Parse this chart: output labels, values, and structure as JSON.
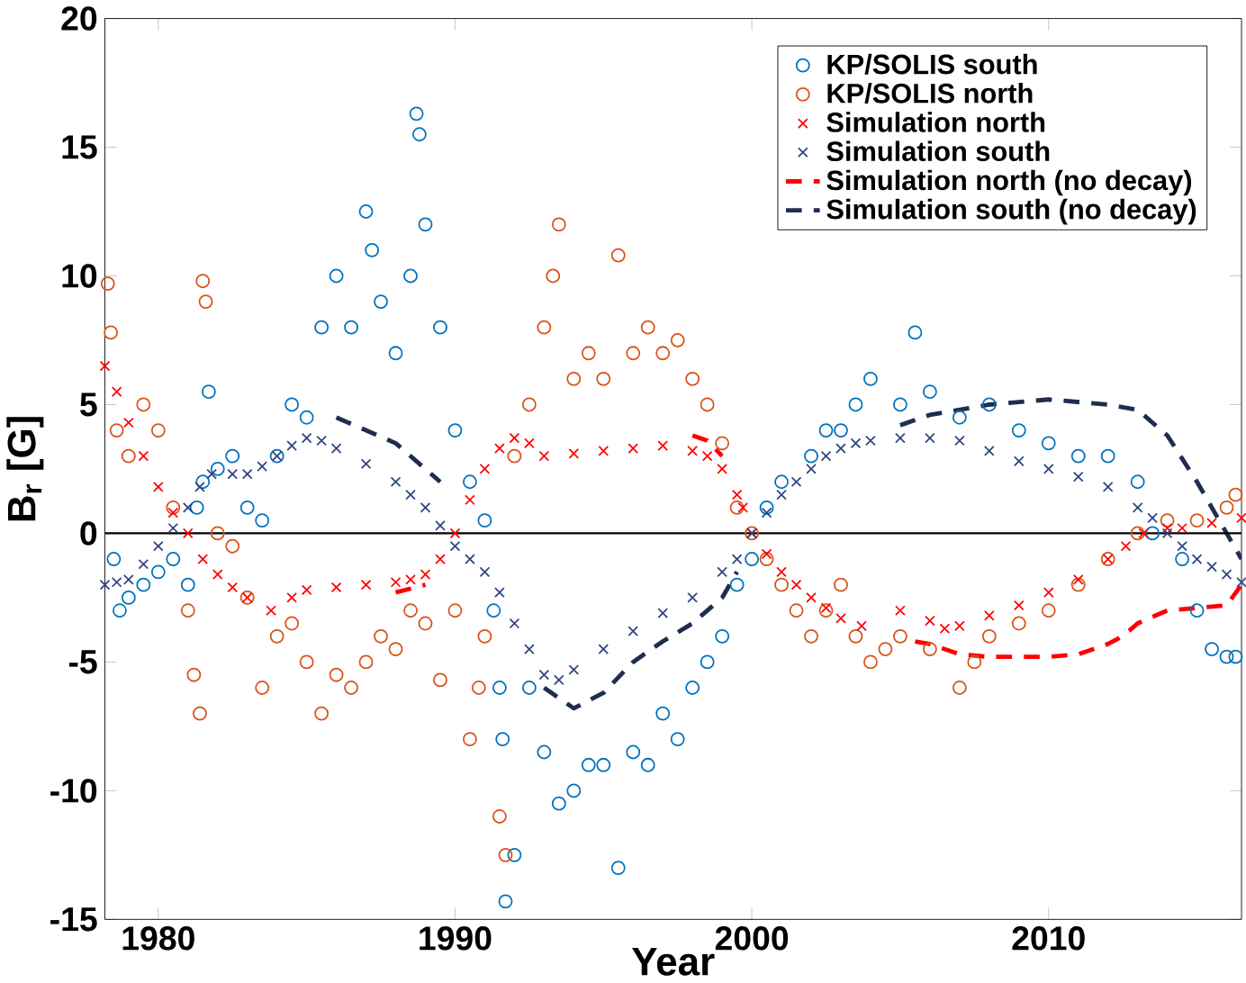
{
  "chart_data": {
    "type": "scatter",
    "xlabel": "Year",
    "ylabel": "B$_{r}$ [G]",
    "xlim": [
      1978.2,
      2016.5
    ],
    "ylim": [
      -15,
      20
    ],
    "xticks": [
      1980,
      1990,
      2000,
      2010
    ],
    "yticks": [
      -15,
      -10,
      -5,
      0,
      5,
      10,
      15,
      20
    ],
    "grid": false,
    "legend": "top right",
    "ref_lines": [
      {
        "axis": "y",
        "value": 0,
        "color": "#000000"
      }
    ],
    "series": [
      {
        "name": "KP/SOLIS south",
        "marker": "circle",
        "color": "#0072bd",
        "x": [
          1978.5,
          1978.7,
          1979,
          1979.5,
          1980,
          1980.5,
          1981,
          1981.3,
          1981.5,
          1981.7,
          1982,
          1982.5,
          1983,
          1983.5,
          1984,
          1984.5,
          1985,
          1985.5,
          1986,
          1986.5,
          1987,
          1987.2,
          1987.5,
          1988,
          1988.5,
          1988.7,
          1988.8,
          1989,
          1989.5,
          1990,
          1990.5,
          1991,
          1991.3,
          1991.5,
          1991.6,
          1991.7,
          1992,
          1992.5,
          1993,
          1993.5,
          1994,
          1994.5,
          1995,
          1995.5,
          1996,
          1996.5,
          1997,
          1997.5,
          1998,
          1998.5,
          1999,
          1999.5,
          2000,
          2000.5,
          2001,
          2002,
          2002.5,
          2003,
          2003.5,
          2004,
          2005,
          2005.5,
          2006,
          2007,
          2008,
          2009,
          2010,
          2011,
          2012,
          2013,
          2013.5,
          2014.5,
          2015,
          2015.5,
          2016,
          2016.3
        ],
        "values": [
          -1,
          -3,
          -2.5,
          -2,
          -1.5,
          -1,
          -2,
          1,
          2,
          5.5,
          2.5,
          3,
          1,
          0.5,
          3,
          5,
          4.5,
          8,
          10,
          8,
          12.5,
          11,
          9,
          7,
          10,
          16.3,
          15.5,
          12,
          8,
          4,
          2,
          0.5,
          -3,
          -6,
          -8,
          -14.3,
          -12.5,
          -6,
          -8.5,
          -10.5,
          -10,
          -9,
          -9,
          -13,
          -8.5,
          -9,
          -7,
          -8,
          -6,
          -5,
          -4,
          -2,
          -1,
          1,
          2,
          3,
          4,
          4,
          5,
          6,
          5,
          7.8,
          5.5,
          4.5,
          5,
          4,
          3.5,
          3,
          3,
          2,
          0,
          -1,
          -3,
          -4.5,
          -4.8,
          -4.8
        ]
      },
      {
        "name": "KP/SOLIS north",
        "marker": "circle",
        "color": "#d95319",
        "x": [
          1978.3,
          1978.4,
          1978.6,
          1979,
          1979.5,
          1980,
          1980.5,
          1981,
          1981.2,
          1981.4,
          1981.5,
          1981.6,
          1982,
          1982.5,
          1983,
          1983.5,
          1984,
          1984.5,
          1985,
          1985.5,
          1986,
          1986.5,
          1987,
          1987.5,
          1988,
          1988.5,
          1989,
          1989.5,
          1990,
          1990.5,
          1990.8,
          1991,
          1991.5,
          1991.7,
          1992,
          1992.5,
          1993,
          1993.3,
          1993.5,
          1994,
          1994.5,
          1995,
          1995.5,
          1996,
          1996.5,
          1997,
          1997.5,
          1998,
          1998.5,
          1999,
          1999.5,
          2000,
          2000.5,
          2001,
          2001.5,
          2002,
          2002.5,
          2003,
          2003.5,
          2004,
          2004.5,
          2005,
          2006,
          2007,
          2007.5,
          2008,
          2009,
          2010,
          2011,
          2012,
          2013,
          2014,
          2015,
          2016,
          2016.3
        ],
        "values": [
          9.7,
          7.8,
          4,
          3,
          5,
          4,
          1,
          -3,
          -5.5,
          -7,
          9.8,
          9,
          0,
          -0.5,
          -2.5,
          -6,
          -4,
          -3.5,
          -5,
          -7,
          -5.5,
          -6,
          -5,
          -4,
          -4.5,
          -3,
          -3.5,
          -5.7,
          -3,
          -8,
          -6,
          -4,
          -11,
          -12.5,
          3,
          5,
          8,
          10,
          12,
          6,
          7,
          6,
          10.8,
          7,
          8,
          7,
          7.5,
          6,
          5,
          3.5,
          1,
          0,
          -1,
          -2,
          -3,
          -4,
          -3,
          -2,
          -4,
          -5,
          -4.5,
          -4,
          -4.5,
          -6,
          -5,
          -4,
          -3.5,
          -3,
          -2,
          -1,
          0,
          0.5,
          0.5,
          1,
          1.5
        ]
      },
      {
        "name": "Simulation north",
        "marker": "cross",
        "color": "#ff0000",
        "x": [
          1978.2,
          1978.6,
          1979,
          1979.5,
          1980,
          1980.5,
          1981,
          1981.5,
          1982,
          1982.5,
          1983,
          1983.8,
          1984.5,
          1985,
          1986,
          1987,
          1988,
          1988.5,
          1989,
          1989.5,
          1990,
          1990.5,
          1991,
          1991.5,
          1992,
          1992.5,
          1993,
          1994,
          1995,
          1996,
          1997,
          1998,
          1998.5,
          1999,
          1999.5,
          1999.7,
          2000,
          2000.5,
          2001,
          2001.5,
          2002,
          2002.5,
          2003,
          2003.7,
          2005,
          2006,
          2006.5,
          2007,
          2008,
          2009,
          2010,
          2011,
          2012,
          2012.6,
          2013.2,
          2014,
          2014.5,
          2015.5,
          2016.5
        ],
        "values": [
          6.5,
          5.5,
          4.3,
          3,
          1.8,
          0.8,
          0,
          -1,
          -1.6,
          -2.1,
          -2.5,
          -3,
          -2.5,
          -2.2,
          -2.1,
          -2,
          -1.9,
          -1.8,
          -1.6,
          -1,
          0,
          1.3,
          2.5,
          3.3,
          3.7,
          3.5,
          3,
          3.1,
          3.2,
          3.3,
          3.4,
          3.2,
          3,
          2.5,
          1.5,
          1,
          0,
          -0.8,
          -1.5,
          -2,
          -2.5,
          -2.9,
          -3.3,
          -3.6,
          -3,
          -3.4,
          -3.7,
          -3.6,
          -3.2,
          -2.8,
          -2.3,
          -1.8,
          -1,
          -0.5,
          0,
          0.2,
          0.2,
          0.4,
          0.6
        ]
      },
      {
        "name": "Simulation south",
        "marker": "cross",
        "color": "#2e4482",
        "x": [
          1978.2,
          1978.6,
          1979,
          1979.5,
          1980,
          1980.5,
          1981,
          1981.4,
          1981.8,
          1982.5,
          1983,
          1983.5,
          1984,
          1984.5,
          1985,
          1985.5,
          1986,
          1987,
          1988,
          1988.5,
          1989,
          1989.5,
          1990,
          1990.5,
          1991,
          1991.5,
          1992,
          1992.5,
          1993,
          1993.5,
          1994,
          1995,
          1996,
          1997,
          1998,
          1999,
          1999.5,
          2000,
          2000.5,
          2001,
          2001.5,
          2002,
          2002.5,
          2003,
          2003.5,
          2004,
          2005,
          2006,
          2007,
          2008,
          2009,
          2010,
          2011,
          2012,
          2013,
          2013.5,
          2014,
          2014.5,
          2015,
          2015.5,
          2016,
          2016.5
        ],
        "values": [
          -2,
          -1.9,
          -1.8,
          -1.2,
          -0.5,
          0.2,
          1,
          1.8,
          2.3,
          2.3,
          2.3,
          2.6,
          3,
          3.4,
          3.7,
          3.6,
          3.3,
          2.7,
          2,
          1.5,
          1,
          0.3,
          -0.5,
          -1,
          -1.5,
          -2.3,
          -3.5,
          -4.5,
          -5.5,
          -5.7,
          -5.3,
          -4.5,
          -3.8,
          -3.1,
          -2.5,
          -1.5,
          -1,
          0,
          0.8,
          1.5,
          2,
          2.5,
          3,
          3.3,
          3.5,
          3.6,
          3.7,
          3.7,
          3.6,
          3.2,
          2.8,
          2.5,
          2.2,
          1.8,
          1,
          0.6,
          0,
          -0.5,
          -1,
          -1.3,
          -1.6,
          -1.9
        ]
      },
      {
        "name": "Simulation north (no decay)",
        "type": "line",
        "line_style": "dashed",
        "color": "#ff0000",
        "x": [
          1988,
          1989,
          1990,
          1998,
          1998.5,
          1999,
          2000,
          2005.5,
          2006,
          2007,
          2008,
          2009,
          2010,
          2011,
          2012,
          2012.5,
          2013,
          2014,
          2015,
          2016,
          2016.5
        ],
        "values": [
          -2.3,
          -2,
          null,
          3.8,
          3.6,
          3,
          null,
          -4.2,
          -4.3,
          -4.7,
          -4.8,
          -4.8,
          -4.8,
          -4.7,
          -4.3,
          -4,
          -3.5,
          -3,
          -2.9,
          -2.8,
          -2
        ]
      },
      {
        "name": "Simulation south (no decay)",
        "type": "line",
        "line_style": "dashed",
        "color": "#1f2d4f",
        "x": [
          1986,
          1987,
          1988,
          1989,
          1989.5,
          1990,
          1993,
          1994,
          1995,
          1996,
          1997,
          1998,
          1999,
          1999.5,
          2000,
          2005,
          2006,
          2008,
          2010,
          2012,
          2013,
          2014,
          2015,
          2015.5,
          2016,
          2016.5
        ],
        "values": [
          4.5,
          4,
          3.5,
          2.5,
          2,
          null,
          -6,
          -6.8,
          -6.2,
          -5,
          -4.2,
          -3.5,
          -2.5,
          -1.5,
          null,
          4.2,
          4.6,
          5,
          5.2,
          5,
          4.8,
          3.8,
          2,
          1,
          0,
          -1
        ]
      }
    ]
  }
}
